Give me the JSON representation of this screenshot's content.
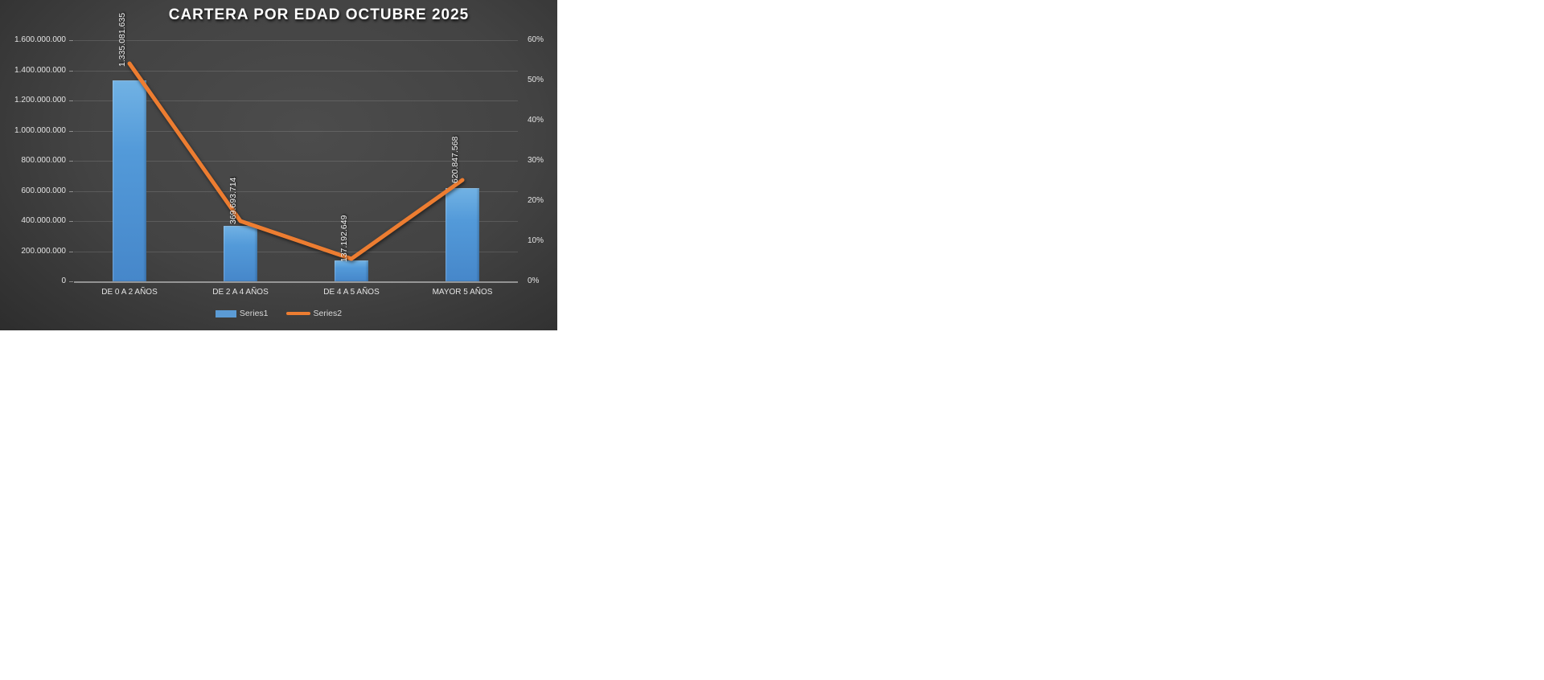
{
  "chart": {
    "title": "CARTERA POR EDAD OCTUBRE 2025",
    "colors": {
      "bar_fill": "#5B9BD5",
      "line_stroke": "#ED7D31",
      "background_center": "#4c4c4c",
      "background_edge": "#242424",
      "tick_text": "#e4e4e4",
      "title_text": "#ffffff"
    },
    "legend": [
      {
        "label": "Series1",
        "swatch": "bar-swatch-icon",
        "color": "#5B9BD5"
      },
      {
        "label": "Series2",
        "swatch": "line-swatch-icon",
        "color": "#ED7D31"
      }
    ]
  },
  "chart_data": {
    "type": "combo",
    "title": "CARTERA POR EDAD OCTUBRE 2025",
    "categories": [
      "DE 0 A 2 AÑOS",
      "DE 2 A 4 AÑOS",
      "DE 4 A 5 AÑOS",
      "MAYOR 5 AÑOS"
    ],
    "series": [
      {
        "name": "Series1",
        "type": "bar",
        "axis": "left",
        "color": "#5B9BD5",
        "values": [
          1335081635,
          369693714,
          137192649,
          620847568
        ],
        "data_labels": [
          "1.335.081.635",
          "369.693.714",
          "137.192.649",
          "620.847.568"
        ]
      },
      {
        "name": "Series2",
        "type": "line",
        "axis": "right",
        "color": "#ED7D31",
        "values_percent": [
          54.2,
          15.0,
          5.6,
          25.2
        ]
      }
    ],
    "left_axis": {
      "min": 0,
      "max": 1600000000,
      "tick_labels": [
        "1.600.000.000",
        "1.400.000.000",
        "1.200.000.000",
        "1.000.000.000",
        "800.000.000",
        "600.000.000",
        "400.000.000",
        "200.000.000",
        "0"
      ]
    },
    "right_axis": {
      "min": 0,
      "max": 60,
      "tick_labels": [
        "60%",
        "50%",
        "40%",
        "30%",
        "20%",
        "10%",
        "0%"
      ]
    },
    "grid": "horizontal-major",
    "legend_position": "bottom"
  }
}
